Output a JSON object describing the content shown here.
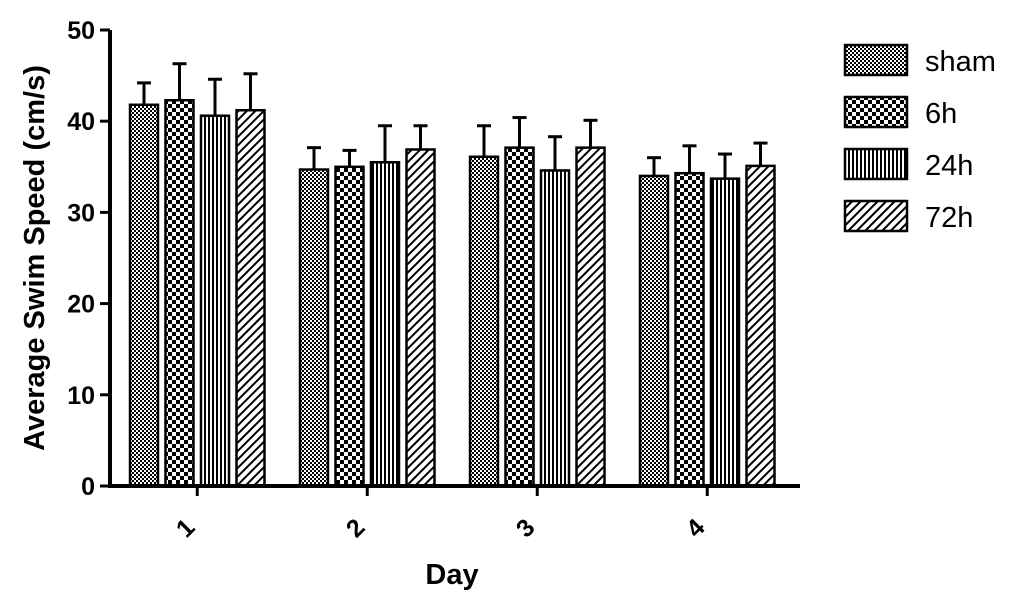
{
  "chart_data": {
    "type": "bar",
    "title": "",
    "xlabel": "Day",
    "ylabel": "Average Swim Speed (cm/s)",
    "categories": [
      "1",
      "2",
      "3",
      "4"
    ],
    "ylim": [
      0,
      50
    ],
    "yticks": [
      "0",
      "10",
      "20",
      "30",
      "40",
      "50"
    ],
    "error_bars": "upper",
    "legend_position": "right",
    "series": [
      {
        "name": "sham",
        "pattern": "dense-checker",
        "values": [
          41.8,
          34.7,
          36.1,
          34.0
        ],
        "errors": [
          2.4,
          2.4,
          3.4,
          2.0
        ]
      },
      {
        "name": "6h",
        "pattern": "coarse-checker",
        "values": [
          42.3,
          35.0,
          37.1,
          34.3
        ],
        "errors": [
          4.0,
          1.8,
          3.3,
          3.0
        ]
      },
      {
        "name": "24h",
        "pattern": "vertical-lines",
        "values": [
          40.6,
          35.5,
          34.6,
          33.7
        ],
        "errors": [
          4.0,
          4.0,
          3.7,
          2.7
        ]
      },
      {
        "name": "72h",
        "pattern": "diagonal-lines",
        "values": [
          41.2,
          36.9,
          37.1,
          35.1
        ],
        "errors": [
          4.0,
          2.6,
          3.0,
          2.5
        ]
      }
    ]
  }
}
